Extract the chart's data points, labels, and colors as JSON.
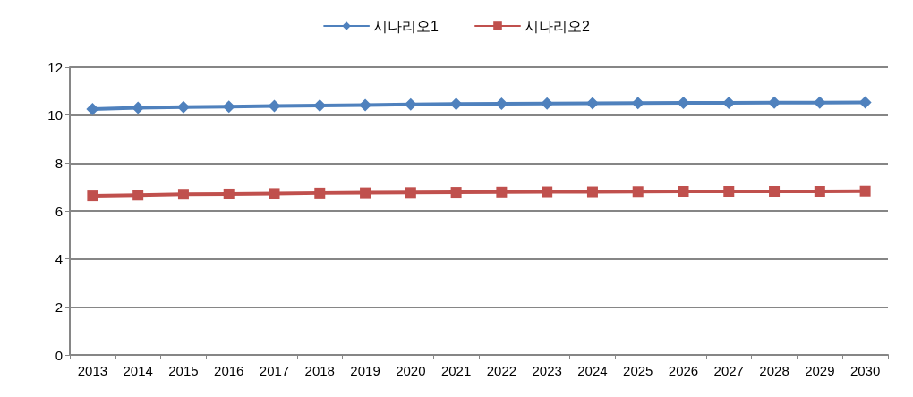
{
  "chart_data": {
    "type": "line",
    "categories": [
      "2013",
      "2014",
      "2015",
      "2016",
      "2017",
      "2018",
      "2019",
      "2020",
      "2021",
      "2022",
      "2023",
      "2024",
      "2025",
      "2026",
      "2027",
      "2028",
      "2029",
      "2030"
    ],
    "series": [
      {
        "name": "시나리오1",
        "color": "#4f81bd",
        "marker": "diamond",
        "values": [
          10.25,
          10.3,
          10.33,
          10.35,
          10.38,
          10.4,
          10.42,
          10.44,
          10.46,
          10.47,
          10.48,
          10.49,
          10.5,
          10.51,
          10.51,
          10.52,
          10.52,
          10.53
        ]
      },
      {
        "name": "시나리오2",
        "color": "#c0504d",
        "marker": "square",
        "values": [
          6.63,
          6.66,
          6.7,
          6.71,
          6.73,
          6.75,
          6.76,
          6.77,
          6.78,
          6.79,
          6.8,
          6.8,
          6.81,
          6.82,
          6.82,
          6.82,
          6.82,
          6.83
        ]
      }
    ],
    "ylim": [
      0,
      12
    ],
    "yticks": [
      0,
      2,
      4,
      6,
      8,
      10,
      12
    ],
    "grid": "y",
    "legend": "top"
  }
}
